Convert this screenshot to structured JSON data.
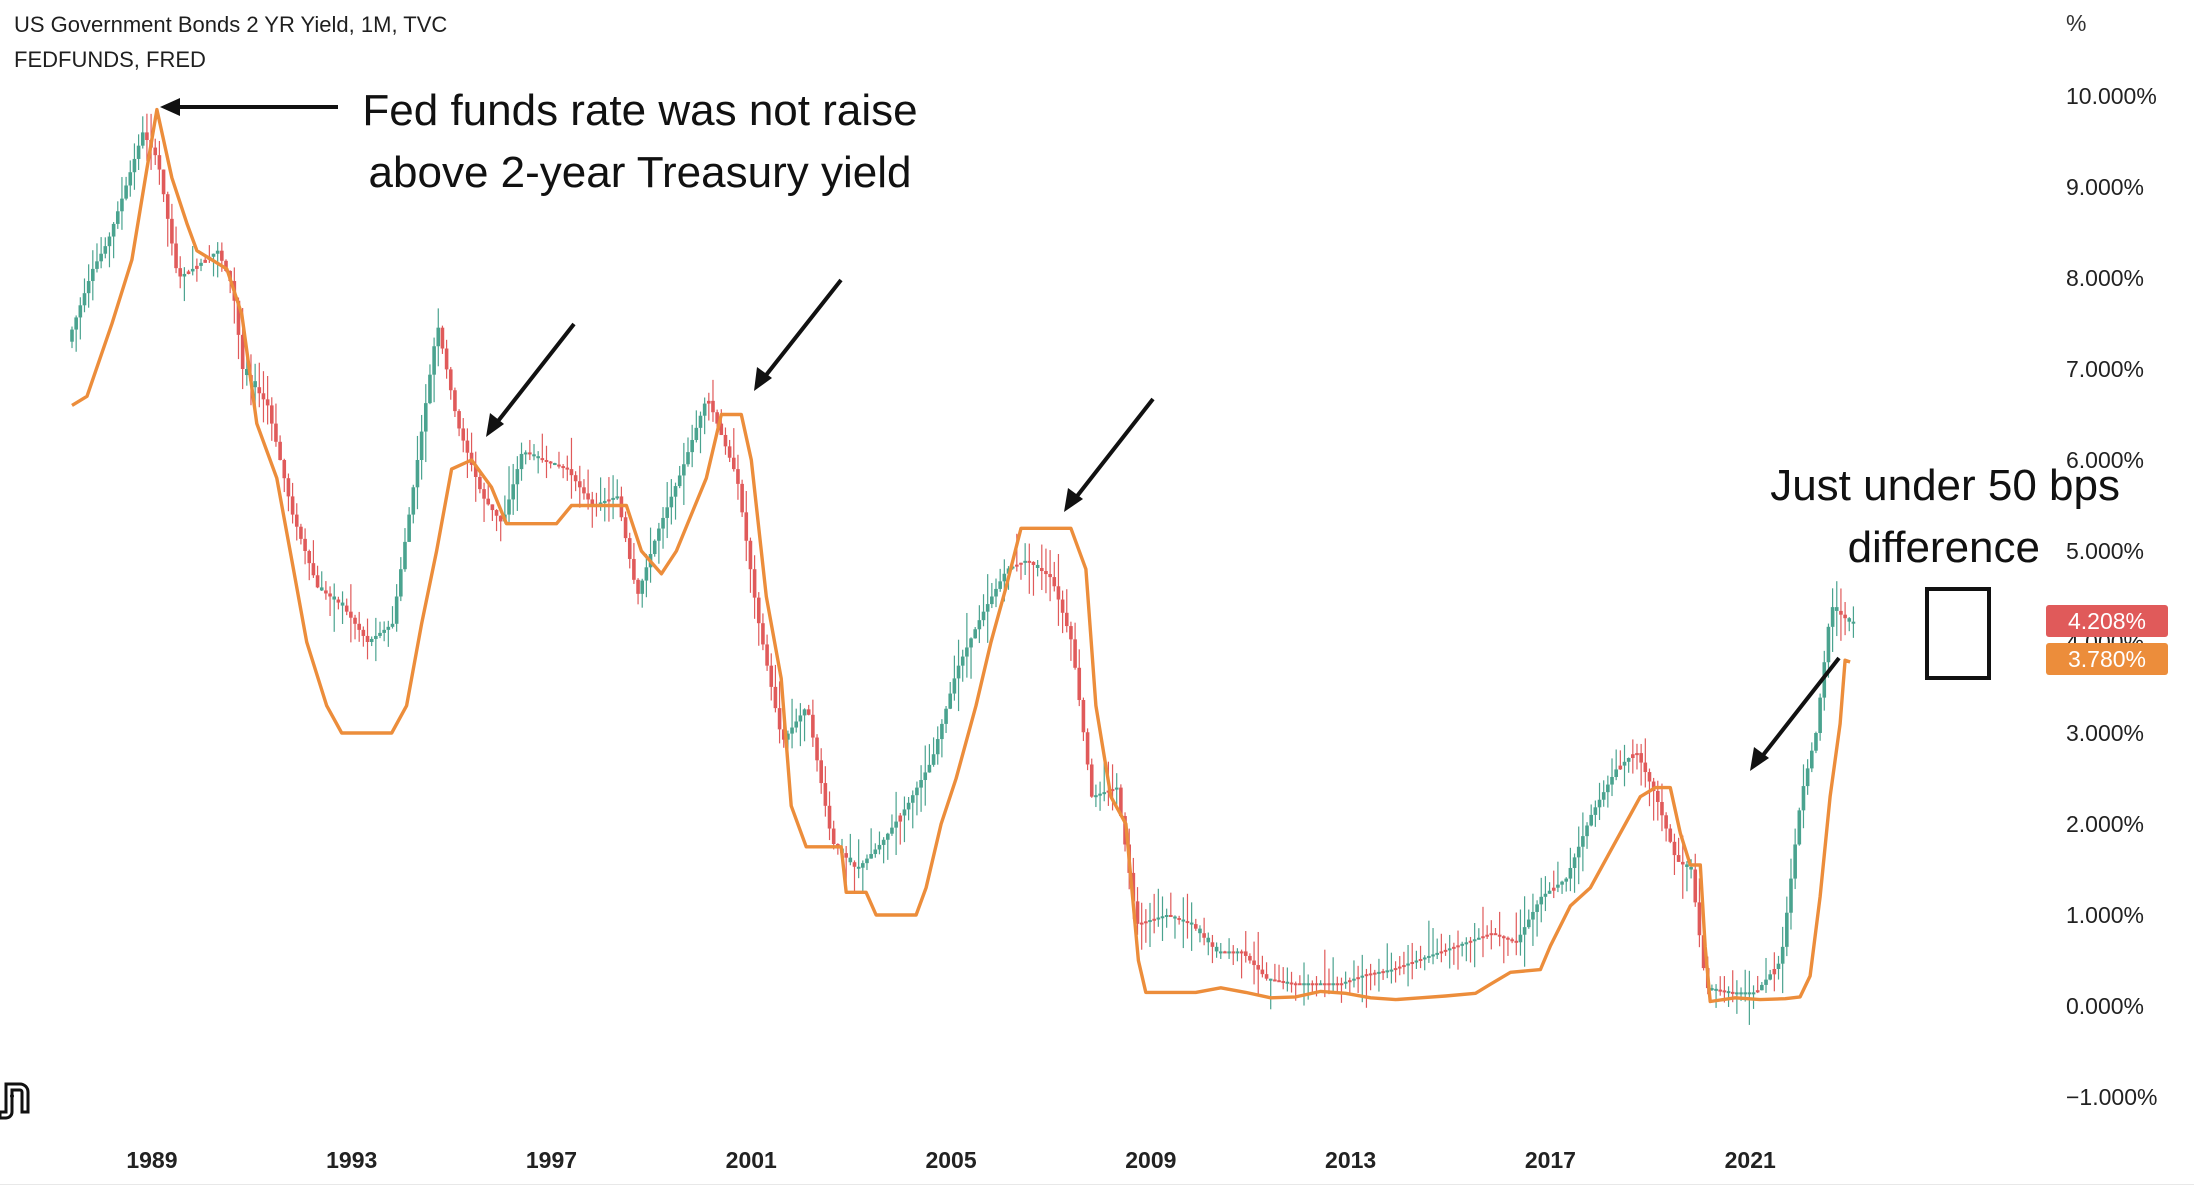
{
  "legend": {
    "line1": "US Government Bonds 2 YR Yield, 1M, TVC",
    "line2": "FEDFUNDS, FRED"
  },
  "annotations": {
    "top_line1": "Fed funds rate was not raise",
    "top_line2": "above 2-year Treasury yield",
    "right_line1": "Just under 50 bps",
    "right_line2": "difference"
  },
  "y_axis": {
    "unit": "%",
    "ticks": [
      "10.000%",
      "9.000%",
      "8.000%",
      "7.000%",
      "6.000%",
      "5.000%",
      "4.000%",
      "3.000%",
      "2.000%",
      "1.000%",
      "0.000%",
      "−1.000%"
    ]
  },
  "x_axis": {
    "ticks": [
      "1989",
      "1993",
      "1997",
      "2001",
      "2005",
      "2009",
      "2013",
      "2017",
      "2021"
    ]
  },
  "price_labels": {
    "two_year": "4.208%",
    "fed_funds": "3.780%"
  },
  "icons": {
    "logo": "tradingview-logo-icon"
  },
  "colors": {
    "up_candle": "#4aa38f",
    "down_candle": "#e05a5a",
    "fed_funds_line": "#ec8d3b",
    "two_year_badge": "#e05a5a",
    "fed_funds_badge": "#ec8d3b"
  },
  "chart_data": {
    "type": "line",
    "title": "",
    "xlabel": "",
    "ylabel": "%",
    "ylim": [
      -1,
      10
    ],
    "xlim": [
      1987.5,
      2024.8
    ],
    "series": [
      {
        "name": "US Government Bonds 2 YR Yield, 1M, TVC",
        "style": "candlestick",
        "points": [
          [
            1987.5,
            7.3
          ],
          [
            1988.0,
            8.1
          ],
          [
            1988.3,
            8.4
          ],
          [
            1988.6,
            8.9
          ],
          [
            1989.0,
            9.6
          ],
          [
            1989.3,
            9.3
          ],
          [
            1989.7,
            8.0
          ],
          [
            1990.0,
            8.1
          ],
          [
            1990.5,
            8.3
          ],
          [
            1990.8,
            7.9
          ],
          [
            1991.0,
            7.0
          ],
          [
            1991.5,
            6.6
          ],
          [
            1992.0,
            5.4
          ],
          [
            1992.5,
            4.6
          ],
          [
            1993.0,
            4.4
          ],
          [
            1993.5,
            4.0
          ],
          [
            1994.0,
            4.2
          ],
          [
            1994.5,
            6.0
          ],
          [
            1994.9,
            7.5
          ],
          [
            1995.3,
            6.4
          ],
          [
            1995.8,
            5.6
          ],
          [
            1996.2,
            5.3
          ],
          [
            1996.6,
            6.1
          ],
          [
            1997.0,
            6.0
          ],
          [
            1997.5,
            5.9
          ],
          [
            1998.0,
            5.5
          ],
          [
            1998.5,
            5.6
          ],
          [
            1998.9,
            4.5
          ],
          [
            1999.3,
            5.2
          ],
          [
            1999.8,
            5.9
          ],
          [
            2000.3,
            6.7
          ],
          [
            2000.9,
            5.8
          ],
          [
            2001.3,
            4.3
          ],
          [
            2001.8,
            2.9
          ],
          [
            2002.3,
            3.3
          ],
          [
            2002.8,
            1.8
          ],
          [
            2003.3,
            1.5
          ],
          [
            2003.8,
            1.8
          ],
          [
            2004.3,
            2.2
          ],
          [
            2004.8,
            2.7
          ],
          [
            2005.3,
            3.7
          ],
          [
            2005.8,
            4.3
          ],
          [
            2006.3,
            4.8
          ],
          [
            2006.7,
            4.9
          ],
          [
            2007.2,
            4.7
          ],
          [
            2007.6,
            4.0
          ],
          [
            2008.0,
            2.3
          ],
          [
            2008.5,
            2.4
          ],
          [
            2008.9,
            0.9
          ],
          [
            2009.5,
            1.0
          ],
          [
            2010.0,
            0.9
          ],
          [
            2010.5,
            0.6
          ],
          [
            2011.0,
            0.6
          ],
          [
            2011.5,
            0.3
          ],
          [
            2012.0,
            0.25
          ],
          [
            2012.5,
            0.25
          ],
          [
            2013.0,
            0.25
          ],
          [
            2013.5,
            0.35
          ],
          [
            2014.0,
            0.4
          ],
          [
            2014.5,
            0.5
          ],
          [
            2015.0,
            0.6
          ],
          [
            2015.5,
            0.7
          ],
          [
            2016.0,
            0.8
          ],
          [
            2016.5,
            0.7
          ],
          [
            2017.0,
            1.2
          ],
          [
            2017.5,
            1.4
          ],
          [
            2018.0,
            2.1
          ],
          [
            2018.5,
            2.6
          ],
          [
            2018.9,
            2.8
          ],
          [
            2019.3,
            2.3
          ],
          [
            2019.7,
            1.6
          ],
          [
            2020.0,
            1.5
          ],
          [
            2020.3,
            0.2
          ],
          [
            2020.8,
            0.15
          ],
          [
            2021.3,
            0.15
          ],
          [
            2021.8,
            0.5
          ],
          [
            2022.2,
            2.3
          ],
          [
            2022.5,
            3.0
          ],
          [
            2022.8,
            4.4
          ],
          [
            2023.0,
            4.3
          ],
          [
            2023.2,
            4.208
          ]
        ]
      },
      {
        "name": "FEDFUNDS, FRED",
        "style": "line",
        "points": [
          [
            1987.5,
            6.6
          ],
          [
            1987.8,
            6.7
          ],
          [
            1988.3,
            7.5
          ],
          [
            1988.7,
            8.2
          ],
          [
            1989.0,
            9.2
          ],
          [
            1989.2,
            9.85
          ],
          [
            1989.5,
            9.1
          ],
          [
            1989.8,
            8.6
          ],
          [
            1990.0,
            8.3
          ],
          [
            1990.6,
            8.1
          ],
          [
            1990.9,
            7.6
          ],
          [
            1991.2,
            6.4
          ],
          [
            1991.6,
            5.8
          ],
          [
            1991.9,
            4.9
          ],
          [
            1992.2,
            4.0
          ],
          [
            1992.6,
            3.3
          ],
          [
            1992.9,
            3.0
          ],
          [
            1993.5,
            3.0
          ],
          [
            1993.9,
            3.0
          ],
          [
            1994.2,
            3.3
          ],
          [
            1994.5,
            4.2
          ],
          [
            1994.8,
            5.0
          ],
          [
            1995.1,
            5.9
          ],
          [
            1995.5,
            6.0
          ],
          [
            1995.9,
            5.7
          ],
          [
            1996.2,
            5.3
          ],
          [
            1996.8,
            5.3
          ],
          [
            1997.2,
            5.3
          ],
          [
            1997.5,
            5.5
          ],
          [
            1997.9,
            5.5
          ],
          [
            1998.3,
            5.5
          ],
          [
            1998.6,
            5.5
          ],
          [
            1998.9,
            5.0
          ],
          [
            1999.3,
            4.75
          ],
          [
            1999.6,
            5.0
          ],
          [
            1999.9,
            5.4
          ],
          [
            2000.2,
            5.8
          ],
          [
            2000.5,
            6.5
          ],
          [
            2000.9,
            6.5
          ],
          [
            2001.1,
            6.0
          ],
          [
            2001.4,
            4.5
          ],
          [
            2001.7,
            3.6
          ],
          [
            2001.9,
            2.2
          ],
          [
            2002.2,
            1.75
          ],
          [
            2002.6,
            1.75
          ],
          [
            2002.9,
            1.75
          ],
          [
            2003.0,
            1.25
          ],
          [
            2003.4,
            1.25
          ],
          [
            2003.6,
            1.0
          ],
          [
            2004.0,
            1.0
          ],
          [
            2004.4,
            1.0
          ],
          [
            2004.6,
            1.3
          ],
          [
            2004.9,
            2.0
          ],
          [
            2005.2,
            2.5
          ],
          [
            2005.6,
            3.3
          ],
          [
            2005.9,
            4.0
          ],
          [
            2006.2,
            4.6
          ],
          [
            2006.5,
            5.25
          ],
          [
            2007.0,
            5.25
          ],
          [
            2007.5,
            5.25
          ],
          [
            2007.8,
            4.8
          ],
          [
            2008.0,
            3.3
          ],
          [
            2008.3,
            2.3
          ],
          [
            2008.6,
            2.0
          ],
          [
            2008.85,
            0.5
          ],
          [
            2009.0,
            0.15
          ],
          [
            2009.6,
            0.15
          ],
          [
            2010.0,
            0.15
          ],
          [
            2010.5,
            0.2
          ],
          [
            2011.0,
            0.15
          ],
          [
            2011.5,
            0.09
          ],
          [
            2012.0,
            0.1
          ],
          [
            2012.5,
            0.16
          ],
          [
            2013.0,
            0.14
          ],
          [
            2013.5,
            0.09
          ],
          [
            2014.0,
            0.07
          ],
          [
            2014.5,
            0.09
          ],
          [
            2015.0,
            0.11
          ],
          [
            2015.6,
            0.14
          ],
          [
            2015.9,
            0.24
          ],
          [
            2016.3,
            0.37
          ],
          [
            2016.9,
            0.4
          ],
          [
            2017.1,
            0.66
          ],
          [
            2017.5,
            1.1
          ],
          [
            2017.9,
            1.3
          ],
          [
            2018.3,
            1.7
          ],
          [
            2018.6,
            2.0
          ],
          [
            2018.9,
            2.3
          ],
          [
            2019.2,
            2.4
          ],
          [
            2019.5,
            2.4
          ],
          [
            2019.7,
            1.9
          ],
          [
            2019.9,
            1.55
          ],
          [
            2020.1,
            1.55
          ],
          [
            2020.2,
            0.65
          ],
          [
            2020.3,
            0.05
          ],
          [
            2020.8,
            0.09
          ],
          [
            2021.3,
            0.07
          ],
          [
            2021.8,
            0.08
          ],
          [
            2022.1,
            0.1
          ],
          [
            2022.3,
            0.33
          ],
          [
            2022.5,
            1.2
          ],
          [
            2022.7,
            2.3
          ],
          [
            2022.9,
            3.1
          ],
          [
            2023.0,
            3.8
          ],
          [
            2023.1,
            3.78
          ]
        ]
      }
    ],
    "grid": false,
    "legend_position": "top-left"
  }
}
